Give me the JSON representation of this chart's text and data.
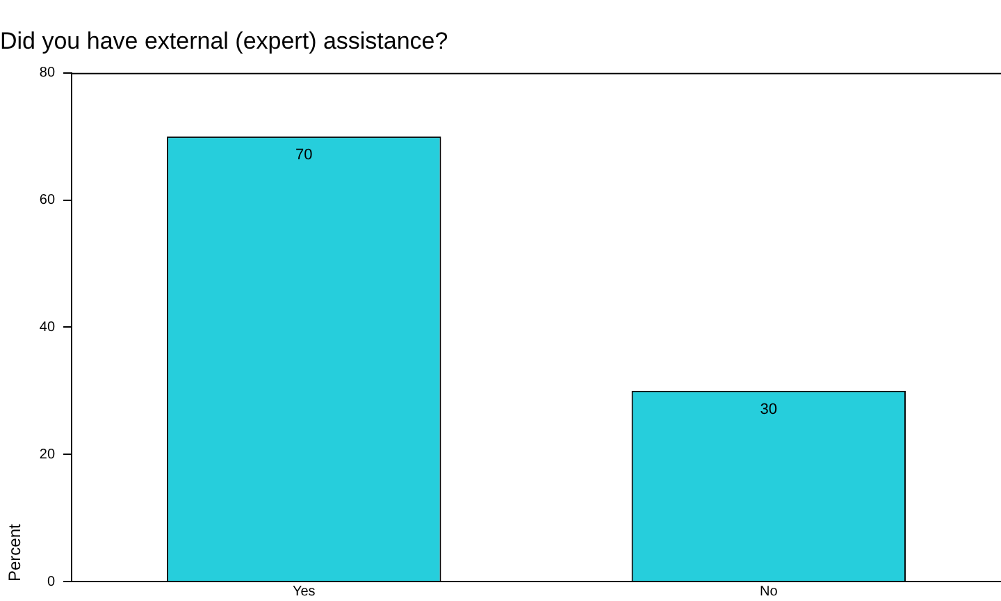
{
  "chart_data": {
    "type": "bar",
    "title": "Did you have external (expert) assistance?",
    "ylabel": "Percent",
    "categories": [
      "Yes",
      "No"
    ],
    "values": [
      70,
      30
    ],
    "color": "#26cedc",
    "ylim": [
      0,
      80
    ],
    "yticks": [
      0,
      20,
      40,
      60,
      80
    ],
    "grid": false,
    "legend": false,
    "data_labels": true
  }
}
